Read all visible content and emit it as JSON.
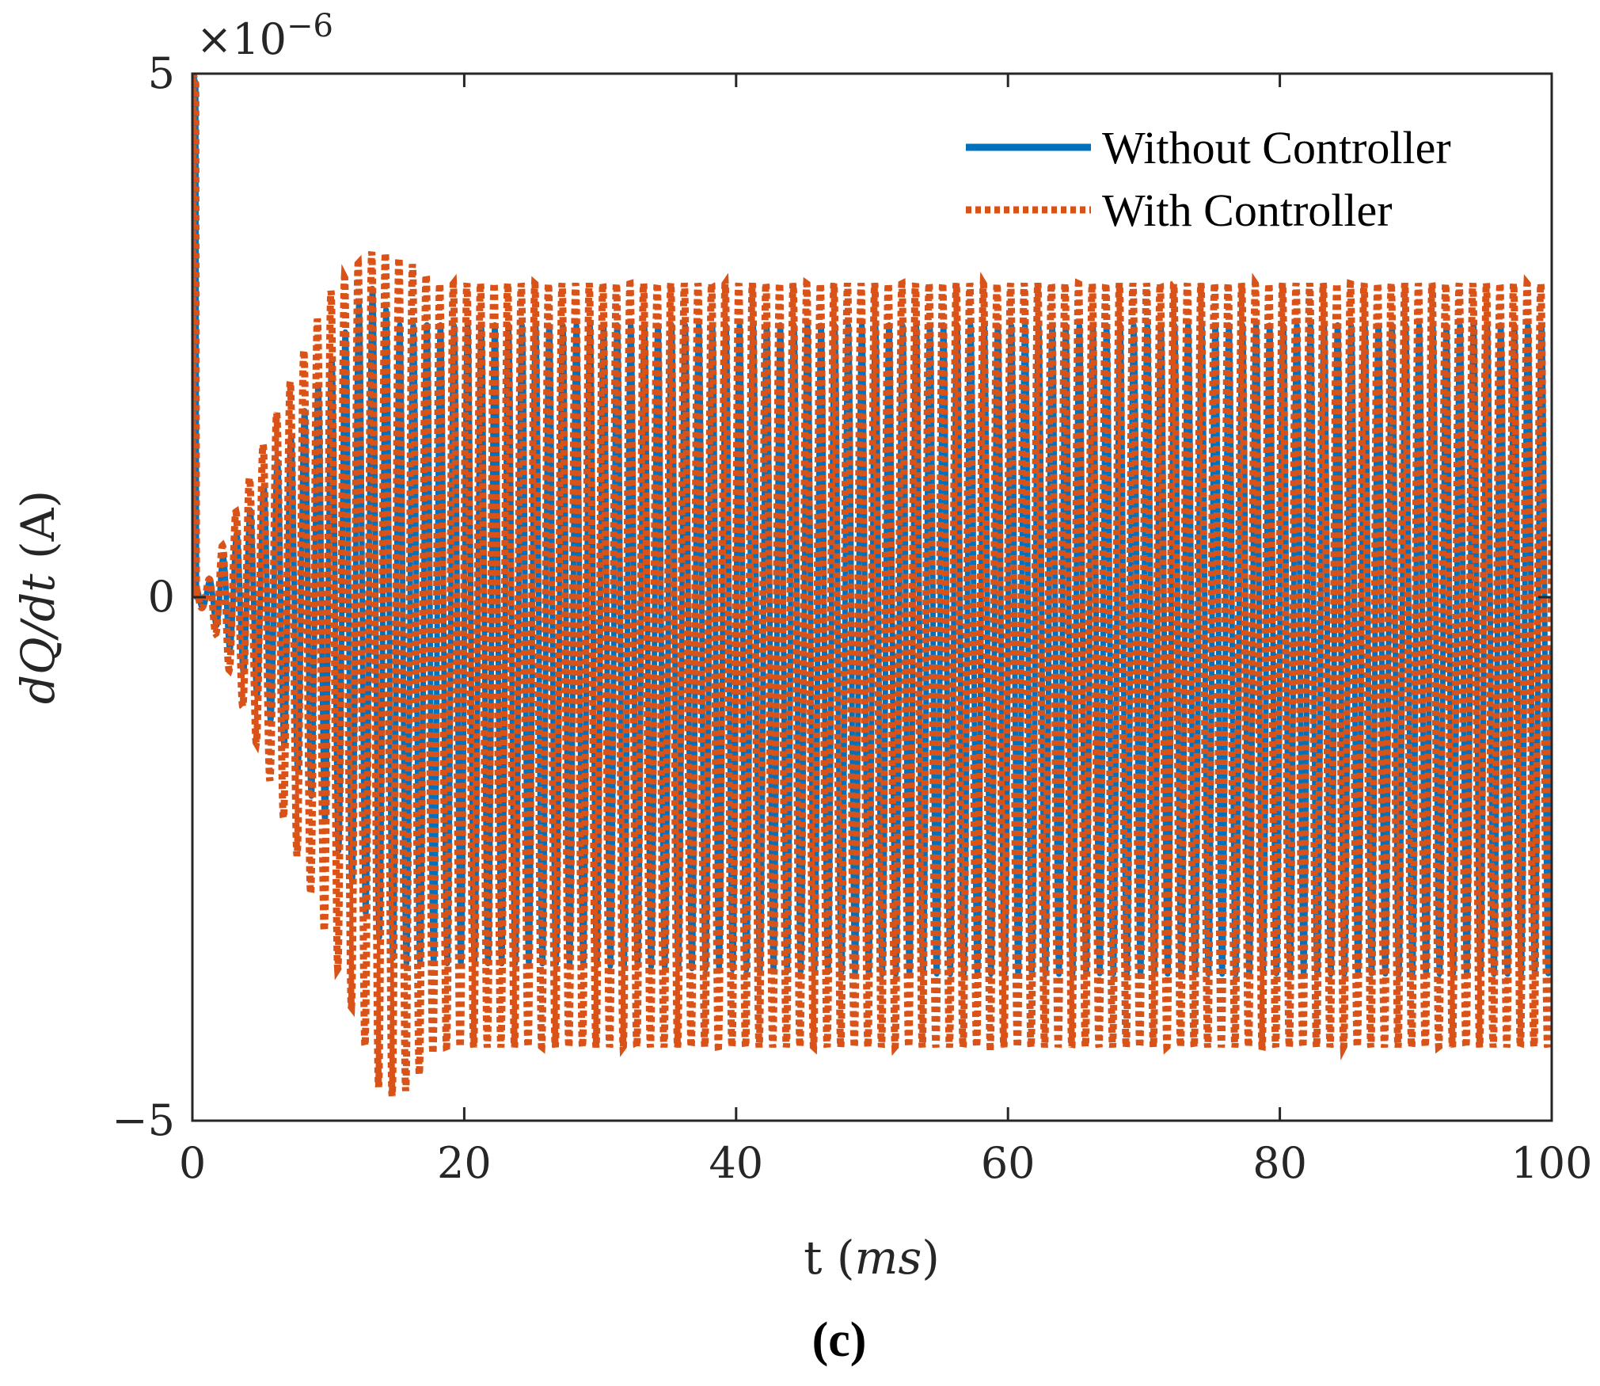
{
  "chart_data": {
    "type": "line",
    "x_label_parts": [
      "t (",
      "ms",
      ")"
    ],
    "y_label_parts": [
      "dQ/dt",
      " (A)"
    ],
    "y_multiplier": "×10",
    "y_exponent": "−6",
    "caption": "(c)",
    "xlim": [
      0,
      100
    ],
    "ylim": [
      -5,
      5
    ],
    "x_ticks": [
      0,
      20,
      40,
      60,
      80,
      100
    ],
    "y_ticks": [
      -5,
      0,
      5
    ],
    "x_tick_labels": [
      "0",
      "20",
      "40",
      "60",
      "80",
      "100"
    ],
    "y_tick_labels": [
      "−5",
      "0",
      "5"
    ],
    "x_unit": "ms",
    "y_scale": 1e-06,
    "grid": false,
    "legend_position": "top-right",
    "series": [
      {
        "name": "Without Controller",
        "style": "solid",
        "color": "#0072BD",
        "initial_peak": 5.0,
        "oscillation_period_ms": 1.0,
        "envelope_t": [
          0,
          1,
          5,
          10,
          13,
          15,
          18,
          25,
          50,
          75,
          100
        ],
        "envelope_max": [
          0.1,
          0.1,
          1.0,
          2.2,
          3.0,
          2.6,
          2.6,
          2.6,
          2.6,
          2.6,
          2.6
        ],
        "envelope_min": [
          -0.1,
          -0.1,
          -1.0,
          -2.2,
          -3.1,
          -3.5,
          -3.5,
          -3.5,
          -3.6,
          -3.6,
          -3.6
        ]
      },
      {
        "name": "With Controller",
        "style": "dotted",
        "color": "#D95319",
        "initial_peak": 5.0,
        "oscillation_period_ms": 1.0,
        "envelope_t": [
          0,
          1,
          5,
          10,
          13,
          14,
          16,
          18,
          25,
          50,
          75,
          100
        ],
        "envelope_max": [
          0.1,
          0.1,
          1.4,
          2.9,
          3.3,
          3.3,
          3.2,
          3.0,
          3.0,
          3.0,
          3.0,
          3.0
        ],
        "envelope_min": [
          -0.1,
          -0.1,
          -1.5,
          -3.3,
          -4.4,
          -4.8,
          -4.7,
          -4.3,
          -4.3,
          -4.3,
          -4.3,
          -4.3
        ]
      }
    ]
  }
}
